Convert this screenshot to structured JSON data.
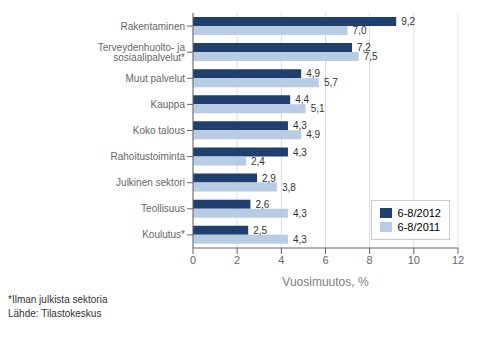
{
  "chart_data": {
    "type": "bar",
    "orientation": "horizontal",
    "categories": [
      "Rakentaminen",
      "Terveydenhuolto- ja sosiaalipalvelut*",
      "Muut palvelut",
      "Kauppa",
      "Koko talous",
      "Rahoitustoiminta",
      "Julkinen sektori",
      "Teollisuus",
      "Koulutus*"
    ],
    "series": [
      {
        "name": "6-8/2012",
        "color": "#1F3F6E",
        "values": [
          9.2,
          7.2,
          4.9,
          4.4,
          4.3,
          4.3,
          2.9,
          2.6,
          2.5
        ],
        "value_labels": [
          "9,2",
          "7,2",
          "4,9",
          "4,4",
          "4,3",
          "4,3",
          "2,9",
          "2,6",
          "2,5"
        ]
      },
      {
        "name": "6-8/2011",
        "color": "#B8CCE4",
        "values": [
          7.0,
          7.5,
          5.7,
          5.1,
          4.9,
          2.4,
          3.8,
          4.3,
          4.3
        ],
        "value_labels": [
          "7,0",
          "7,5",
          "5,7",
          "5,1",
          "4,9",
          "2,4",
          "3,8",
          "4,3",
          "4,3"
        ]
      }
    ],
    "xlabel": "Vuosimuutos, %",
    "xlim": [
      0,
      12
    ],
    "xticks": [
      0,
      2,
      4,
      6,
      8,
      10,
      12
    ],
    "grid": true,
    "legend": "lower right",
    "data_labels": true,
    "annotations": [
      "*Ilman julkista sektoria",
      "Lähde: Tilastokeskus"
    ]
  }
}
